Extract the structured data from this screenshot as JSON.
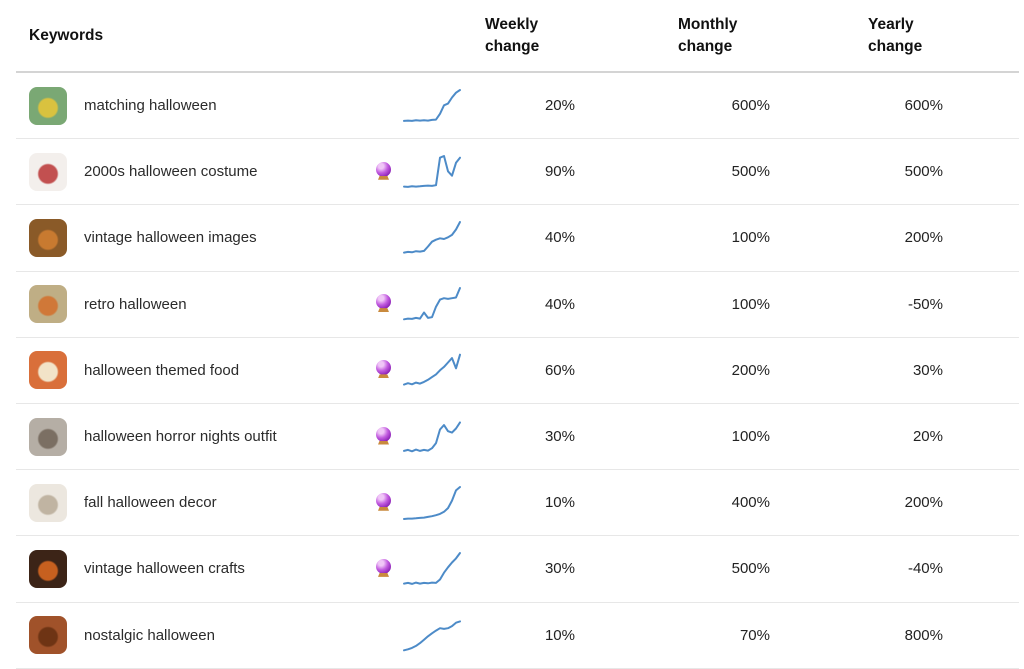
{
  "header": {
    "keywords": "Keywords",
    "weekly": "Weekly change",
    "monthly": "Monthly change",
    "yearly": "Yearly change"
  },
  "colors": {
    "sparkline": "#4d8bc8",
    "divider": "#e7e7e7",
    "header_divider": "#d4d4d4",
    "text": "#222222"
  },
  "rows": [
    {
      "keyword": "matching halloween",
      "predicted": false,
      "weekly": "20%",
      "monthly": "600%",
      "yearly": "600%",
      "spark": [
        9,
        10,
        9,
        11,
        10,
        11,
        10,
        12,
        13,
        30,
        55,
        60,
        78,
        92,
        100
      ],
      "thumb": {
        "base": "#7aa874",
        "accent": "#d9c23f"
      }
    },
    {
      "keyword": "2000s halloween costume",
      "predicted": true,
      "weekly": "90%",
      "monthly": "500%",
      "yearly": "500%",
      "spark": [
        10,
        9,
        11,
        10,
        11,
        12,
        13,
        12,
        14,
        95,
        100,
        55,
        42,
        80,
        95
      ],
      "thumb": {
        "base": "#f3efec",
        "accent": "#c25050"
      }
    },
    {
      "keyword": "vintage halloween images",
      "predicted": false,
      "weekly": "40%",
      "monthly": "100%",
      "yearly": "200%",
      "spark": [
        10,
        12,
        11,
        14,
        13,
        15,
        28,
        42,
        48,
        52,
        50,
        55,
        62,
        78,
        100
      ],
      "thumb": {
        "base": "#8a5a28",
        "accent": "#c87a30"
      }
    },
    {
      "keyword": "retro halloween",
      "predicted": true,
      "weekly": "40%",
      "monthly": "100%",
      "yearly": "-50%",
      "spark": [
        8,
        10,
        9,
        12,
        10,
        28,
        12,
        14,
        45,
        66,
        70,
        68,
        70,
        72,
        100
      ],
      "thumb": {
        "base": "#bfae85",
        "accent": "#d07838"
      }
    },
    {
      "keyword": "halloween themed food",
      "predicted": true,
      "weekly": "60%",
      "monthly": "200%",
      "yearly": "30%",
      "spark": [
        10,
        14,
        11,
        16,
        13,
        18,
        24,
        32,
        40,
        52,
        62,
        75,
        88,
        58,
        98
      ],
      "thumb": {
        "base": "#d96f3a",
        "accent": "#f2e3c8"
      }
    },
    {
      "keyword": "halloween horror nights outfit",
      "predicted": true,
      "weekly": "30%",
      "monthly": "100%",
      "yearly": "20%",
      "spark": [
        12,
        15,
        11,
        16,
        12,
        15,
        13,
        20,
        35,
        75,
        88,
        70,
        66,
        78,
        96
      ],
      "thumb": {
        "base": "#b5aea5",
        "accent": "#7b6f63"
      }
    },
    {
      "keyword": "fall halloween decor",
      "predicted": true,
      "weekly": "10%",
      "monthly": "400%",
      "yearly": "200%",
      "spark": [
        6,
        7,
        7,
        8,
        9,
        10,
        12,
        14,
        17,
        21,
        27,
        38,
        60,
        90,
        100
      ],
      "thumb": {
        "base": "#ece7df",
        "accent": "#c0b4a2"
      }
    },
    {
      "keyword": "vintage halloween crafts",
      "predicted": true,
      "weekly": "30%",
      "monthly": "500%",
      "yearly": "-40%",
      "spark": [
        10,
        12,
        9,
        13,
        10,
        12,
        11,
        13,
        12,
        22,
        42,
        58,
        72,
        84,
        100
      ],
      "thumb": {
        "base": "#3c2417",
        "accent": "#c7601f"
      }
    },
    {
      "keyword": "nostalgic halloween",
      "predicted": false,
      "weekly": "10%",
      "monthly": "70%",
      "yearly": "800%",
      "spark": [
        8,
        11,
        15,
        21,
        29,
        39,
        49,
        58,
        66,
        73,
        71,
        73,
        79,
        89,
        93
      ],
      "thumb": {
        "base": "#a0522a",
        "accent": "#6e3414"
      }
    }
  ]
}
